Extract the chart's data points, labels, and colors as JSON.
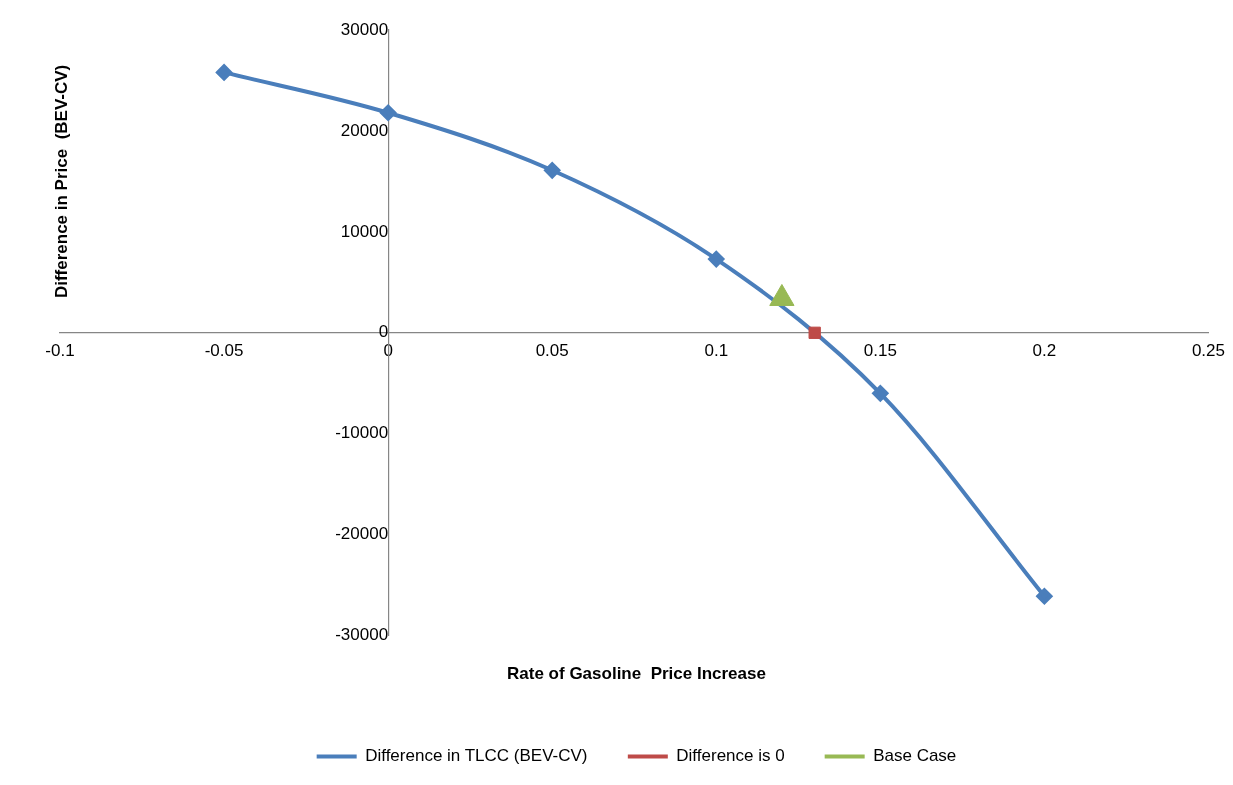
{
  "chart_data": {
    "type": "line",
    "xlabel": "Rate of Gasoline  Price Increase",
    "ylabel": "Difference in Price  (BEV-CV)",
    "xlim": [
      -0.1,
      0.25
    ],
    "xticks": [
      -0.1,
      -0.05,
      0,
      0.05,
      0.1,
      0.15,
      0.2,
      0.25
    ],
    "ylim": [
      -30000,
      30000
    ],
    "yticks": [
      -30000,
      -20000,
      -10000,
      0,
      10000,
      20000,
      30000
    ],
    "grid": false,
    "legend": "bottom",
    "series": [
      {
        "name": "Difference in TLCC (BEV-CV)",
        "color": "#4a7ebb",
        "marker": "diamond",
        "x": [
          -0.05,
          0,
          0.05,
          0.1,
          0.15,
          0.2
        ],
        "values": [
          25800,
          21800,
          16100,
          7300,
          -6000,
          -26100
        ]
      },
      {
        "name": "Difference is 0",
        "color": "#be4b48",
        "type": "scatter",
        "marker": "square",
        "x": [
          0.13
        ],
        "values": [
          0
        ]
      },
      {
        "name": "Base Case",
        "color": "#98b954",
        "type": "scatter",
        "marker": "triangle",
        "x": [
          0.12
        ],
        "values": [
          3400
        ]
      }
    ]
  }
}
